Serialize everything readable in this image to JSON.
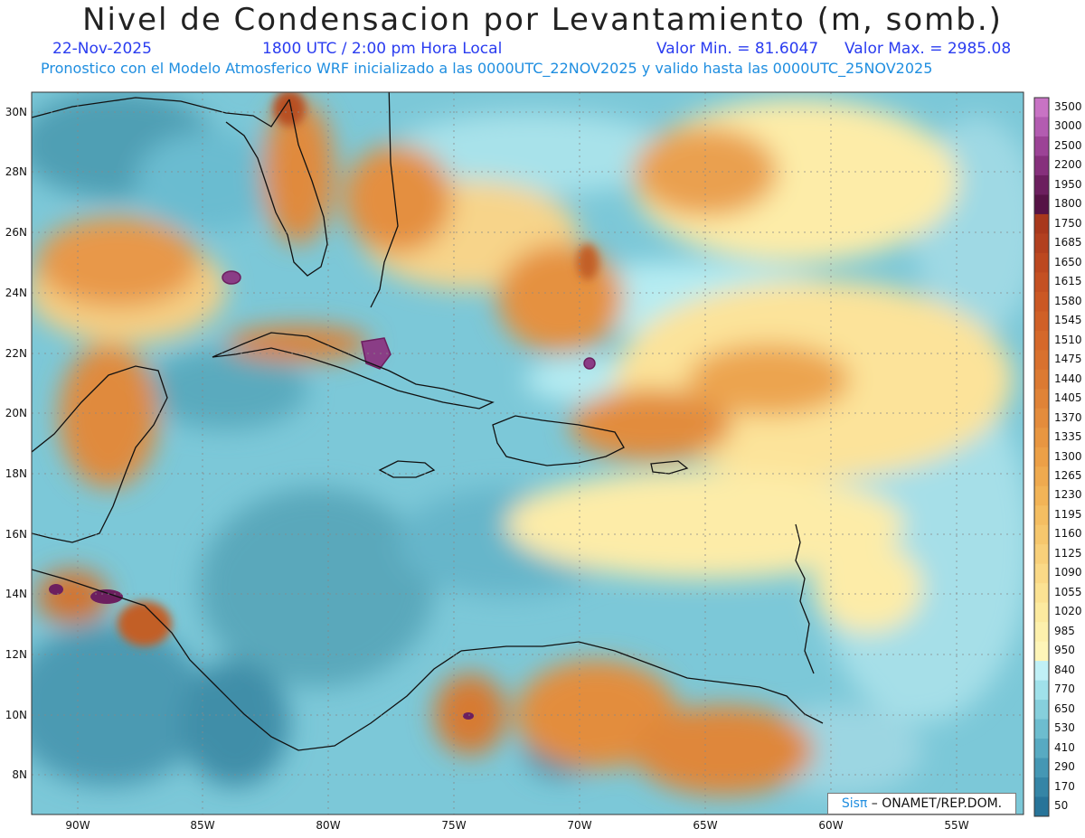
{
  "header": {
    "title": "Nivel de Condensacion por Levantamiento (m, somb.)",
    "date": "22-Nov-2025",
    "time": "1800 UTC / 2:00 pm Hora Local",
    "min_label": "Valor Min. = 81.6047",
    "max_label": "Valor Max. = 2985.08",
    "forecast_note": "Pronostico con el Modelo Atmosferico WRF inicializado a las 0000UTC_22NOV2025 y valido hasta las  0000UTC_25NOV2025"
  },
  "map": {
    "lat_labels": [
      "30N",
      "28N",
      "26N",
      "24N",
      "22N",
      "20N",
      "18N",
      "16N",
      "14N",
      "12N",
      "10N",
      "8N"
    ],
    "lon_labels": [
      "90W",
      "85W",
      "80W",
      "75W",
      "70W",
      "65W",
      "60W",
      "55W"
    ],
    "color_low": "#2a7f95",
    "color_mid": "#aee6ea",
    "color_high": "#e07b25",
    "color_extreme": "#7a2a5a"
  },
  "colorbar": {
    "levels": [
      "3500",
      "3000",
      "2500",
      "2200",
      "1950",
      "1800",
      "1750",
      "1685",
      "1650",
      "1615",
      "1580",
      "1545",
      "1510",
      "1475",
      "1440",
      "1405",
      "1370",
      "1335",
      "1300",
      "1265",
      "1230",
      "1195",
      "1160",
      "1125",
      "1090",
      "1055",
      "1020",
      "985",
      "950",
      "840",
      "770",
      "650",
      "530",
      "410",
      "290",
      "170",
      "50"
    ],
    "colors": [
      "#c873c4",
      "#b35cb1",
      "#9c4396",
      "#86307c",
      "#6c1f5f",
      "#561346",
      "#a8381c",
      "#b2401f",
      "#bc4820",
      "#c45022",
      "#cb5824",
      "#d06027",
      "#d5682a",
      "#d9712e",
      "#dc7a32",
      "#e08337",
      "#e48c3c",
      "#e89641",
      "#eca047",
      "#efaa4f",
      "#f2b457",
      "#f4be62",
      "#f6c76d",
      "#f8d07a",
      "#fad987",
      "#fbe293",
      "#fcea9f",
      "#fdf0ac",
      "#fef5b8",
      "#c0f0f6",
      "#a0e1ea",
      "#86cfdc",
      "#6dbdcf",
      "#58aac2",
      "#4597b4",
      "#3585a6",
      "#277499"
    ]
  },
  "credit": {
    "brand": "Sisπ",
    "text": " – ONAMET/REP.DOM."
  }
}
